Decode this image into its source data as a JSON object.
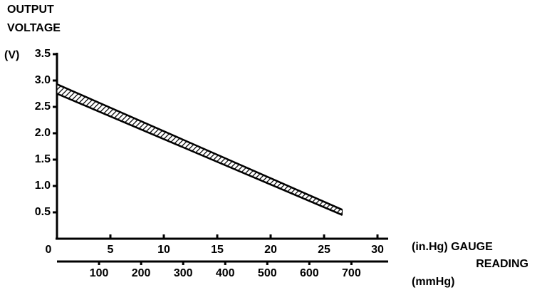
{
  "chart_data": {
    "type": "band",
    "title_lines": [
      "OUTPUT",
      "VOLTAGE"
    ],
    "y_unit": "(V)",
    "x_label": "(in.Hg) GAUGE",
    "x_label_2": "READING",
    "x2_unit": "(mmHg)",
    "color": "#000000",
    "band": {
      "x": [
        0,
        26.7
      ],
      "upper": [
        2.93,
        0.55
      ],
      "lower": [
        2.75,
        0.45
      ]
    },
    "xlim": [
      0,
      30
    ],
    "xticks": [
      0,
      5,
      10,
      15,
      20,
      25,
      30
    ],
    "ylim": [
      0,
      3.5
    ],
    "yticks": [
      {
        "value": 0.5,
        "label": "0.5"
      },
      {
        "value": 1,
        "label": "1.0"
      },
      1.5,
      {
        "value": 2,
        "label": "2.0"
      },
      2.5,
      {
        "value": 3,
        "label": "3.0"
      },
      3.5
    ],
    "x2lim": [
      0,
      762
    ],
    "x2ticks": [
      100,
      200,
      300,
      400,
      500,
      600,
      700
    ]
  }
}
